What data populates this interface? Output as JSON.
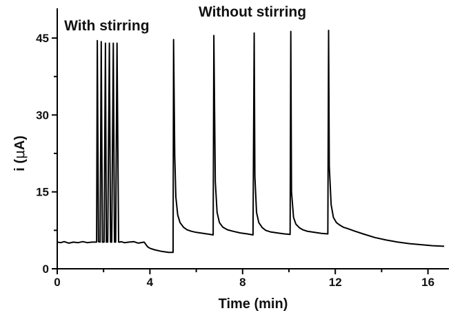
{
  "chart_data": {
    "type": "line",
    "title": "",
    "xlabel": "Time (min)",
    "ylabel_prefix": "i (",
    "ylabel_mu": "μ",
    "ylabel_suffix": "A)",
    "xlim": [
      0,
      17
    ],
    "ylim": [
      0,
      48
    ],
    "x_ticks": [
      0,
      4,
      8,
      12,
      16
    ],
    "y_ticks": [
      0,
      15,
      30,
      45
    ],
    "grid": false,
    "legend": "none",
    "annotations": [
      {
        "text": "With stirring",
        "x": 0.3,
        "y": 46.5
      },
      {
        "text": "Without stirring",
        "x": 6.1,
        "y": 49.2
      }
    ],
    "series": [
      {
        "color": "#000000",
        "x": [
          0.0,
          0.15,
          0.3,
          0.5,
          0.7,
          0.9,
          1.1,
          1.3,
          1.5,
          1.7,
          1.73,
          1.78,
          1.85,
          1.9,
          1.95,
          2.02,
          2.08,
          2.12,
          2.18,
          2.25,
          2.3,
          2.35,
          2.42,
          2.47,
          2.52,
          2.58,
          2.65,
          2.7,
          2.75,
          2.82,
          2.9,
          3.1,
          3.3,
          3.5,
          3.75,
          3.9,
          4.0,
          4.2,
          4.5,
          4.8,
          5.0,
          5.02,
          5.07,
          5.12,
          5.2,
          5.3,
          5.45,
          5.6,
          5.8,
          6.0,
          6.3,
          6.6,
          6.73,
          6.76,
          6.82,
          6.9,
          7.0,
          7.15,
          7.35,
          7.6,
          7.9,
          8.2,
          8.45,
          8.5,
          8.53,
          8.6,
          8.7,
          8.85,
          9.0,
          9.2,
          9.5,
          9.8,
          10.05,
          10.08,
          10.11,
          10.2,
          10.3,
          10.45,
          10.6,
          10.8,
          11.1,
          11.4,
          11.68,
          11.71,
          11.74,
          11.82,
          11.92,
          12.05,
          12.2,
          12.35,
          12.5,
          12.8,
          13.2,
          13.7,
          14.2,
          14.7,
          15.2,
          15.7,
          16.2,
          16.7
        ],
        "y": [
          5.2,
          5.1,
          5.3,
          5.0,
          5.2,
          5.1,
          5.3,
          5.1,
          5.2,
          5.2,
          44.5,
          5.3,
          5.2,
          44.3,
          5.2,
          5.2,
          44.0,
          5.2,
          5.2,
          44.0,
          5.2,
          5.2,
          44.0,
          5.2,
          5.2,
          44.0,
          5.2,
          5.2,
          5.3,
          5.2,
          5.1,
          5.2,
          5.3,
          5.0,
          5.2,
          4.3,
          4.0,
          3.7,
          3.4,
          3.2,
          3.2,
          44.7,
          22.0,
          14.0,
          10.5,
          9.0,
          8.1,
          7.6,
          7.3,
          7.1,
          6.9,
          6.7,
          6.6,
          45.5,
          17.0,
          11.0,
          9.0,
          8.1,
          7.6,
          7.3,
          7.0,
          6.8,
          6.6,
          46.0,
          18.0,
          11.0,
          9.0,
          8.0,
          7.5,
          7.2,
          7.0,
          6.8,
          6.7,
          46.3,
          15.0,
          10.0,
          8.7,
          8.0,
          7.6,
          7.3,
          7.1,
          6.9,
          6.8,
          46.5,
          20.0,
          12.5,
          10.0,
          9.0,
          8.5,
          8.1,
          7.9,
          7.4,
          6.8,
          6.1,
          5.6,
          5.2,
          4.9,
          4.7,
          4.5,
          4.4
        ]
      }
    ]
  }
}
